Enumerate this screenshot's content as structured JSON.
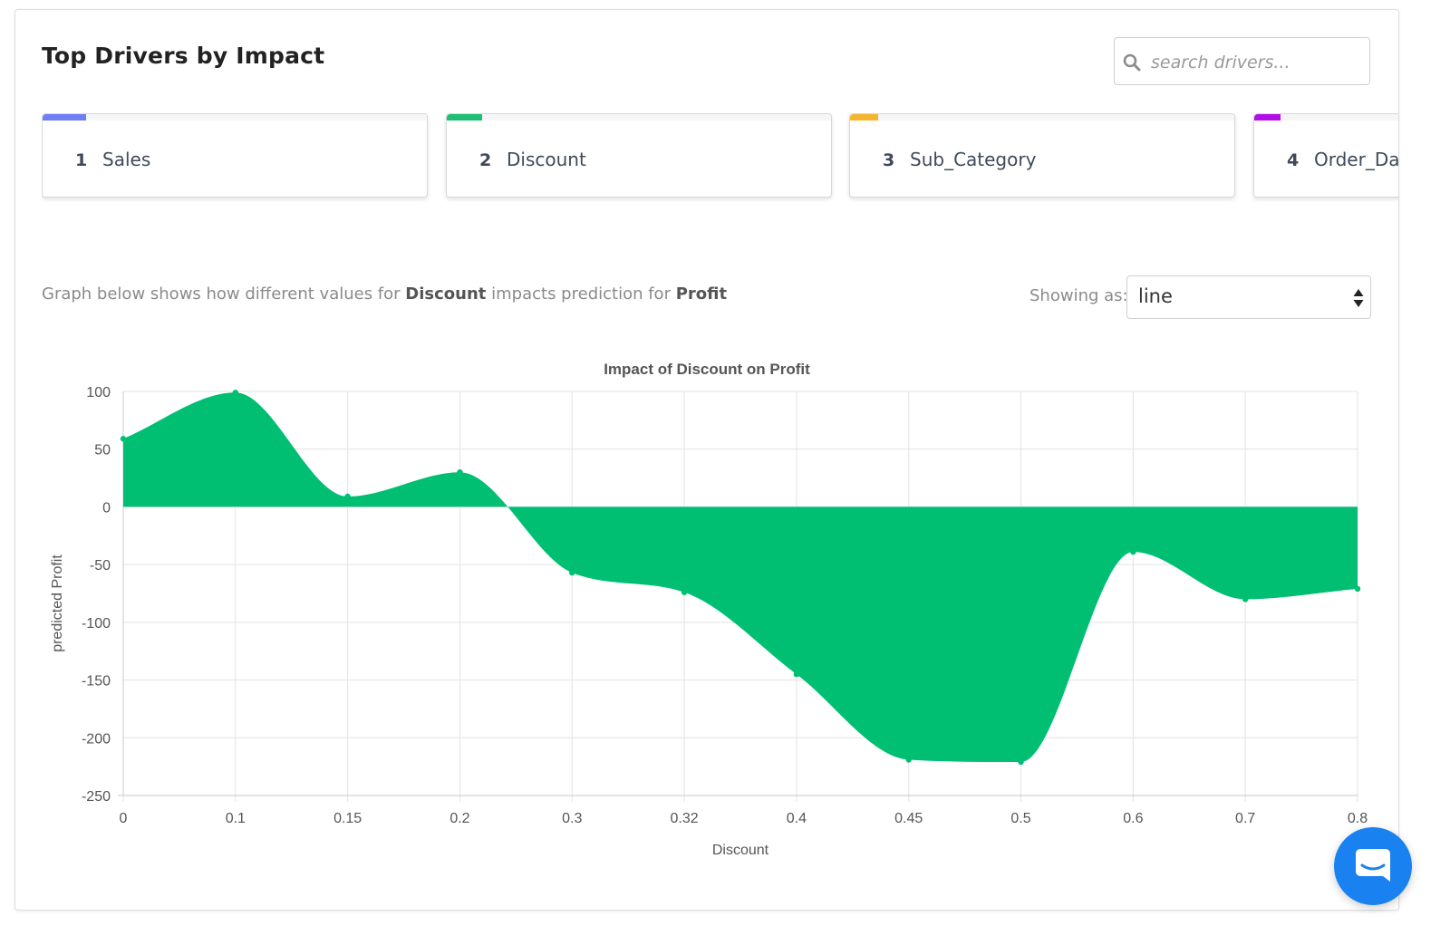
{
  "header": {
    "title": "Top Drivers by Impact",
    "search_placeholder": "search drivers..."
  },
  "drivers": [
    {
      "rank": "1",
      "name": "Sales",
      "color": "#6f7ef5"
    },
    {
      "rank": "2",
      "name": "Discount",
      "color": "#1cbf73"
    },
    {
      "rank": "3",
      "name": "Sub_Category",
      "color": "#f6b62c"
    },
    {
      "rank": "4",
      "name": "Order_Date",
      "color": "#b40ee8"
    }
  ],
  "description": {
    "prefix": "Graph below shows how different values for",
    "feature": "Discount",
    "middle": "impacts prediction for",
    "target": "Profit"
  },
  "view": {
    "label": "Showing as:",
    "selected": "line"
  },
  "chart_data": {
    "type": "area",
    "title": "Impact of Discount on Profit",
    "xlabel": "Discount",
    "ylabel": "predicted Profit",
    "categories": [
      "0",
      "0.1",
      "0.15",
      "0.2",
      "0.3",
      "0.32",
      "0.4",
      "0.45",
      "0.5",
      "0.6",
      "0.7",
      "0.8"
    ],
    "values": [
      59,
      99,
      9,
      30,
      -57,
      -74,
      -145,
      -219,
      -221,
      -39,
      -80,
      -71
    ],
    "ylim": [
      -250,
      100
    ],
    "yticks": [
      100,
      50,
      0,
      -50,
      -100,
      -150,
      -200,
      -250
    ],
    "fill_color": "#00bf73",
    "grid": true
  },
  "icons": {
    "search": "search-icon",
    "select_arrows": "updown-arrows-icon",
    "chat": "chat-bubble-icon"
  }
}
